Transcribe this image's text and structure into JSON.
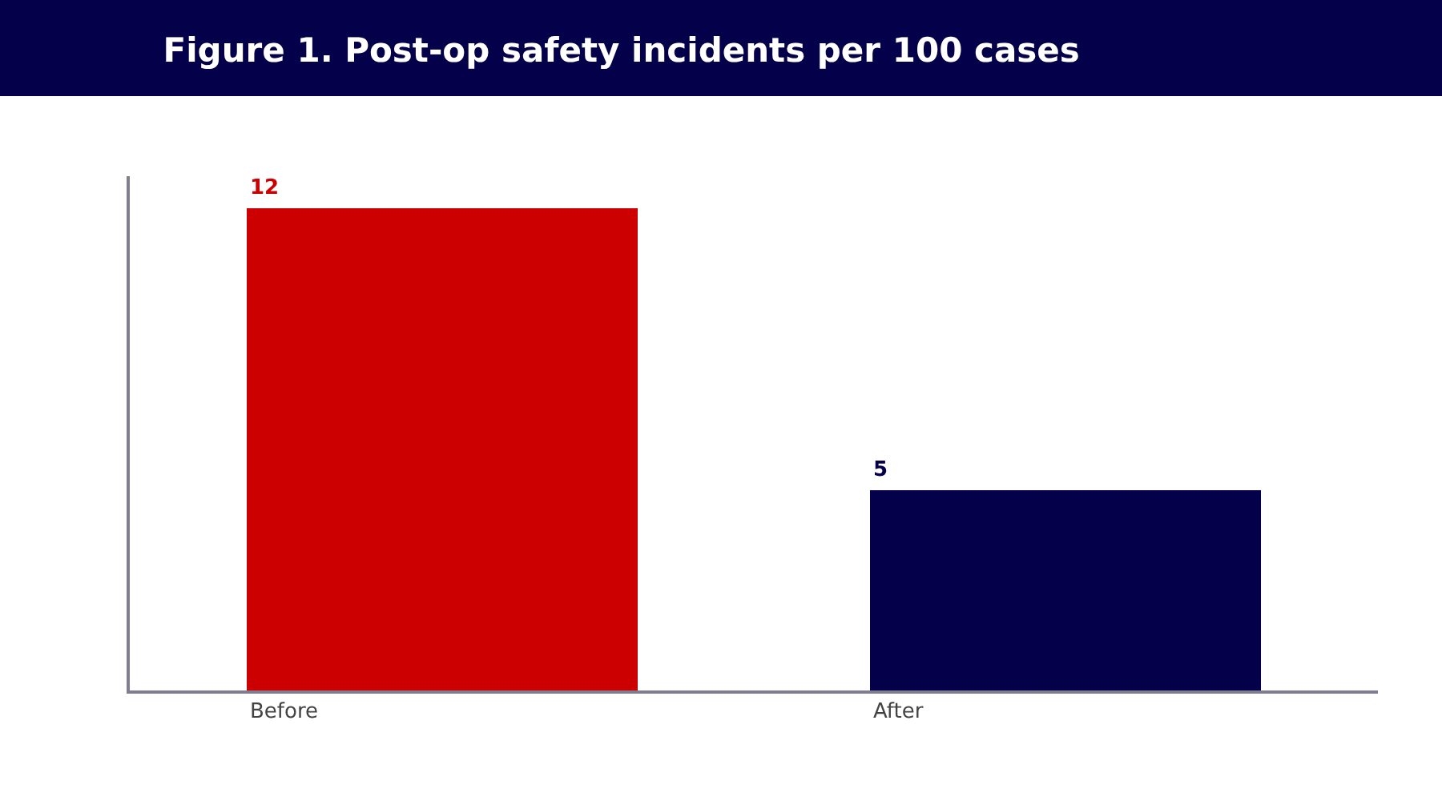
{
  "chart_data": {
    "type": "bar",
    "title": "Figure 1. Post-op safety incidents per 100 cases",
    "categories": [
      "Before",
      "After"
    ],
    "values": [
      12,
      5
    ],
    "colors": [
      "#cc0000",
      "#05004a"
    ],
    "ylim": [
      0,
      12.8
    ],
    "tick_labels": "x",
    "data_labels": true,
    "legend": false
  }
}
